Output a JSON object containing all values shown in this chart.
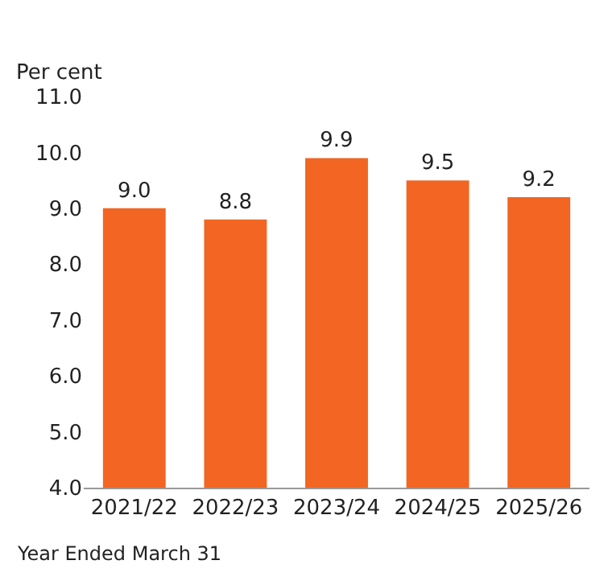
{
  "chart_data": {
    "type": "bar",
    "ylabel": "Per cent",
    "xlabel": "Year Ended March 31",
    "categories": [
      "2021/22",
      "2022/23",
      "2023/24",
      "2024/25",
      "2025/26"
    ],
    "values": [
      9.0,
      8.8,
      9.9,
      9.5,
      9.2
    ],
    "value_labels": [
      "9.0",
      "8.8",
      "9.9",
      "9.5",
      "9.2"
    ],
    "color": "#f26522",
    "ylim": [
      4,
      11
    ],
    "yticks": [
      {
        "value": 4,
        "label": "4.0"
      },
      {
        "value": 5,
        "label": "5.0"
      },
      {
        "value": 6,
        "label": "6.0"
      },
      {
        "value": 7,
        "label": "7.0"
      },
      {
        "value": 8,
        "label": "8.0"
      },
      {
        "value": 9,
        "label": "9.0"
      },
      {
        "value": 10,
        "label": "10.0"
      },
      {
        "value": 11,
        "label": "11.0"
      }
    ],
    "grid": false
  }
}
